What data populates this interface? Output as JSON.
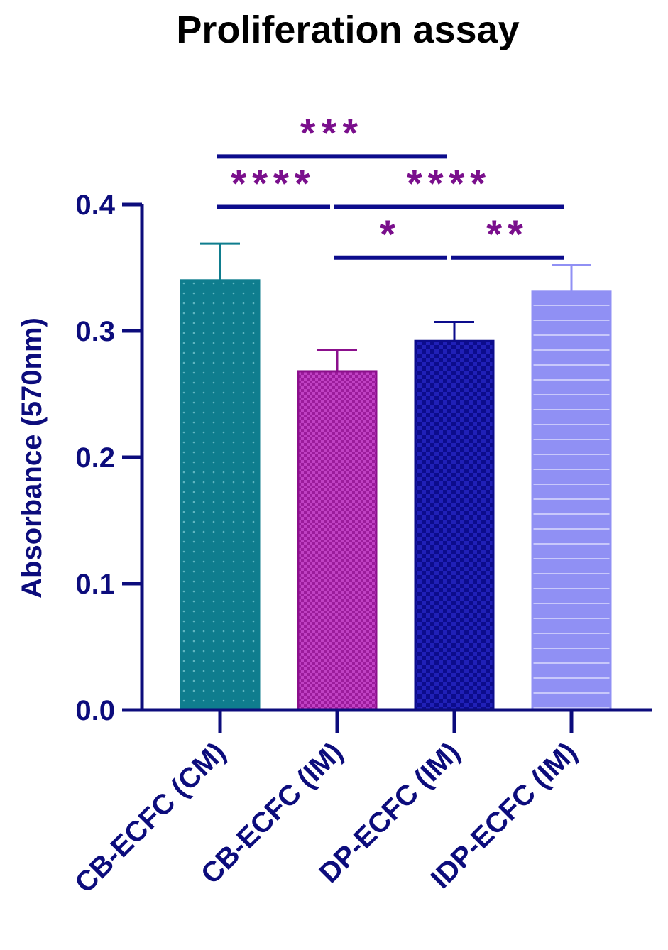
{
  "chart_data": {
    "type": "bar",
    "title": "Proliferation assay",
    "xlabel": "",
    "ylabel": "Absorbance (570nm)",
    "ylim": [
      0,
      0.4
    ],
    "yticks": [
      "0.0",
      "0.1",
      "0.2",
      "0.3",
      "0.4"
    ],
    "ytick_values": [
      0,
      0.1,
      0.2,
      0.3,
      0.4
    ],
    "categories": [
      "CB-ECFC (CM)",
      "CB-ECFC (IM)",
      "DP-ECFC (IM)",
      "IDP-ECFC (IM)"
    ],
    "values": [
      0.34,
      0.268,
      0.292,
      0.331
    ],
    "errors": [
      0.029,
      0.017,
      0.015,
      0.021
    ],
    "bar_colors": [
      "#0f7d8e",
      "#8b0f8c",
      "#0c0c8c",
      "#9090f4"
    ],
    "bar_patterns": [
      "dots",
      "crosshatch",
      "checker",
      "horizontal-lines"
    ],
    "axis_color": "#0c0c7c",
    "significance_color": "#7a0f8c",
    "significance": [
      {
        "from": 0,
        "to": 2,
        "label": "***",
        "level": 0.438
      },
      {
        "from": 0,
        "to": 1,
        "label": "****",
        "level": 0.398
      },
      {
        "from": 1,
        "to": 3,
        "label": "****",
        "level": 0.398
      },
      {
        "from": 1,
        "to": 2,
        "label": "*",
        "level": 0.358
      },
      {
        "from": 2,
        "to": 3,
        "label": "**",
        "level": 0.358
      }
    ]
  }
}
